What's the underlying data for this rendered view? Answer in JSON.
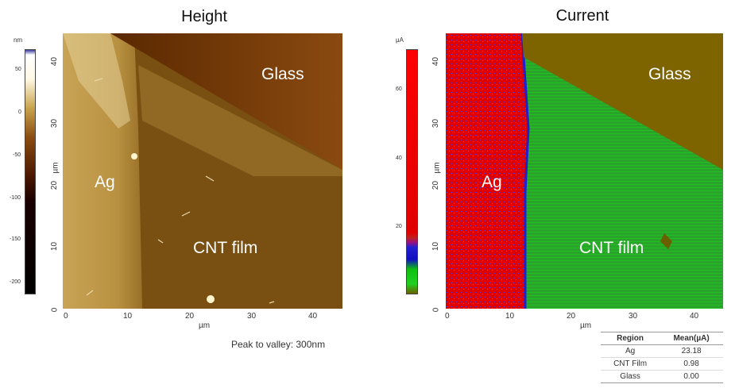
{
  "left": {
    "title": "Height",
    "colorbar_unit": "nm",
    "colorbar_ticks": [
      "50",
      "0",
      "-50",
      "-100",
      "-150",
      "-200"
    ],
    "y_ticks": [
      "40",
      "30",
      "20",
      "10",
      "0"
    ],
    "x_ticks": [
      "0",
      "10",
      "20",
      "30",
      "40"
    ],
    "y_unit": "µm",
    "x_unit": "µm",
    "labels": {
      "glass": "Glass",
      "ag": "Ag",
      "cnt": "CNT film"
    },
    "footnote": "Peak to valley: 300nm"
  },
  "right": {
    "title": "Current",
    "colorbar_unit": "µA",
    "colorbar_ticks": [
      "60",
      "40",
      "20"
    ],
    "y_ticks": [
      "40",
      "30",
      "20",
      "10",
      "0"
    ],
    "x_ticks": [
      "0",
      "10",
      "20",
      "30",
      "40"
    ],
    "y_unit": "µm",
    "x_unit": "µm",
    "labels": {
      "glass": "Glass",
      "ag": "Ag",
      "cnt": "CNT film"
    }
  },
  "stats_table": {
    "headers": [
      "Region",
      "Mean(µA)"
    ],
    "rows": [
      {
        "region": "Ag",
        "mean": "23.18"
      },
      {
        "region": "CNT Film",
        "mean": "0.98"
      },
      {
        "region": "Glass",
        "mean": "0.00"
      }
    ]
  }
}
